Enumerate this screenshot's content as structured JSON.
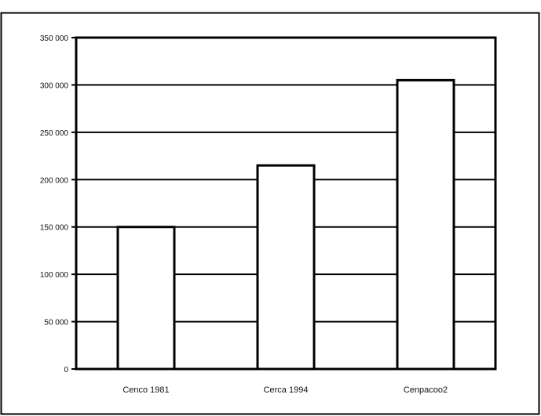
{
  "chart_data": {
    "type": "bar",
    "title": "",
    "xlabel": "",
    "ylabel": "",
    "categories": [
      "Cenco 1981",
      "Cerca 1994",
      "Cenpacoo2"
    ],
    "values": [
      150000,
      215000,
      305000
    ],
    "ylim": [
      0,
      350000
    ],
    "yticks": [
      0,
      50000,
      100000,
      150000,
      200000,
      250000,
      300000,
      350000
    ],
    "ytick_labels": [
      "0",
      "50 000",
      "100 000",
      "150 000",
      "200 000",
      "250 000",
      "300 000",
      "350 000"
    ],
    "grid": true,
    "legend": "none",
    "colors": {
      "bar_fill": "#ffffff",
      "bar_stroke": "#000000",
      "grid": "#000000",
      "frame": "#000000"
    }
  }
}
